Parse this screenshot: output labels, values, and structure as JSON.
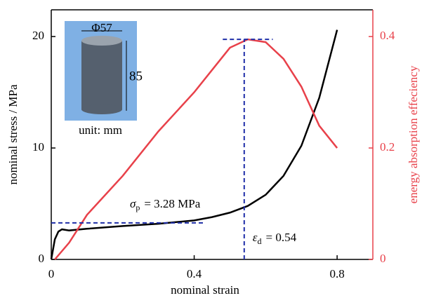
{
  "chart_data": {
    "type": "line",
    "x_label": "nominal strain",
    "y_label": "nominal stress / MPa",
    "y2_label": "energy absorption effeciency",
    "xlim": [
      0,
      0.9
    ],
    "xticks": [
      0,
      0.4,
      0.8
    ],
    "ylim": [
      0,
      22.4
    ],
    "yticks": [
      0,
      10,
      20
    ],
    "y2lim": [
      0,
      0.448
    ],
    "y2ticks": [
      0,
      0.2,
      0.4
    ],
    "y2_color": "#e8414a",
    "series": [
      {
        "color": "#000000",
        "x": [
          0,
          0.01,
          0.02,
          0.03,
          0.05,
          0.1,
          0.2,
          0.3,
          0.4,
          0.45,
          0.5,
          0.55,
          0.6,
          0.65,
          0.7,
          0.75,
          0.8
        ],
        "values": [
          0,
          1.8,
          2.5,
          2.7,
          2.6,
          2.75,
          3.0,
          3.2,
          3.5,
          3.8,
          4.2,
          4.8,
          5.8,
          7.5,
          10.2,
          14.5,
          20.6
        ]
      },
      {
        "color": "#e8414a",
        "axis": "y2",
        "x": [
          0.01,
          0.05,
          0.1,
          0.2,
          0.3,
          0.4,
          0.45,
          0.5,
          0.55,
          0.6,
          0.65,
          0.7,
          0.75,
          0.8
        ],
        "values": [
          0,
          0.03,
          0.08,
          0.15,
          0.23,
          0.3,
          0.34,
          0.38,
          0.395,
          0.39,
          0.36,
          0.31,
          0.24,
          0.2
        ]
      }
    ],
    "annotations": [
      {
        "symbol": "σ",
        "subscript": "p",
        "label": "= 3.28 MPa",
        "value": 3.28
      },
      {
        "symbol": "ε",
        "subscript": "d",
        "label": "= 0.54",
        "value": 0.54
      }
    ],
    "inset": {
      "diameter": "Φ57",
      "height": "85",
      "unit": "unit: mm"
    }
  }
}
